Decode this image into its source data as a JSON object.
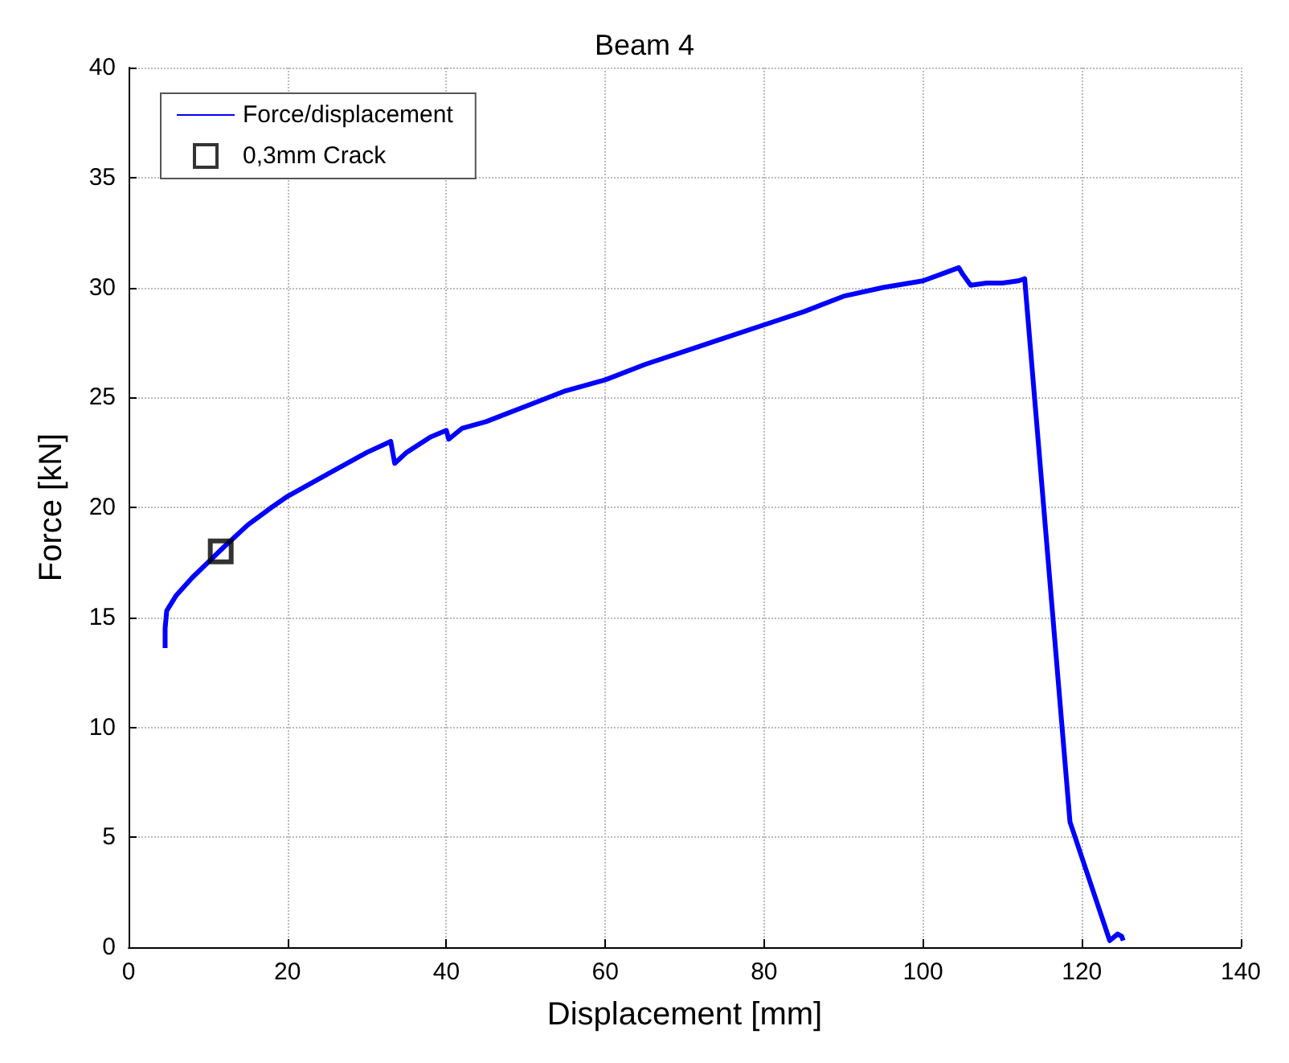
{
  "chart_data": {
    "type": "line",
    "title": "Beam 4",
    "xlabel": "Displacement [mm]",
    "ylabel": "Force [kN]",
    "xlim": [
      0,
      140
    ],
    "xticks": [
      0,
      20,
      40,
      60,
      80,
      100,
      120,
      140
    ],
    "ylim": [
      0,
      40
    ],
    "yticks": [
      0,
      5,
      10,
      15,
      20,
      25,
      30,
      35,
      40
    ],
    "grid": true,
    "legend": "top left",
    "series": [
      {
        "name": "Force/displacement",
        "color": "#0000ff",
        "marker": "none",
        "line_style": "solid",
        "x": [
          4.6,
          4.6,
          4.8,
          6,
          8,
          10,
          12,
          15,
          18,
          20,
          25,
          30,
          33,
          33.5,
          35,
          38,
          40,
          40.3,
          42,
          45,
          50,
          55,
          60,
          65,
          70,
          75,
          80,
          85,
          90,
          95,
          100,
          103,
          104.5,
          105,
          106,
          108,
          110,
          112,
          112.8,
          113,
          118.5,
          123.5,
          124.5,
          125,
          125.2
        ],
        "values": [
          13.6,
          14.5,
          15.3,
          16,
          16.8,
          17.5,
          18.2,
          19.2,
          20,
          20.5,
          21.5,
          22.5,
          23,
          22,
          22.5,
          23.2,
          23.5,
          23.1,
          23.6,
          23.9,
          24.6,
          25.3,
          25.8,
          26.5,
          27.1,
          27.7,
          28.3,
          28.9,
          29.6,
          30,
          30.3,
          30.7,
          30.9,
          30.6,
          30.1,
          30.2,
          30.2,
          30.3,
          30.4,
          29.5,
          5.7,
          0.3,
          0.6,
          0.5,
          0.3
        ]
      },
      {
        "name": "0,3mm Crack",
        "type": "scatter",
        "color": "#000000",
        "marker": "square",
        "x": [
          11.6
        ],
        "values": [
          18
        ]
      }
    ]
  }
}
